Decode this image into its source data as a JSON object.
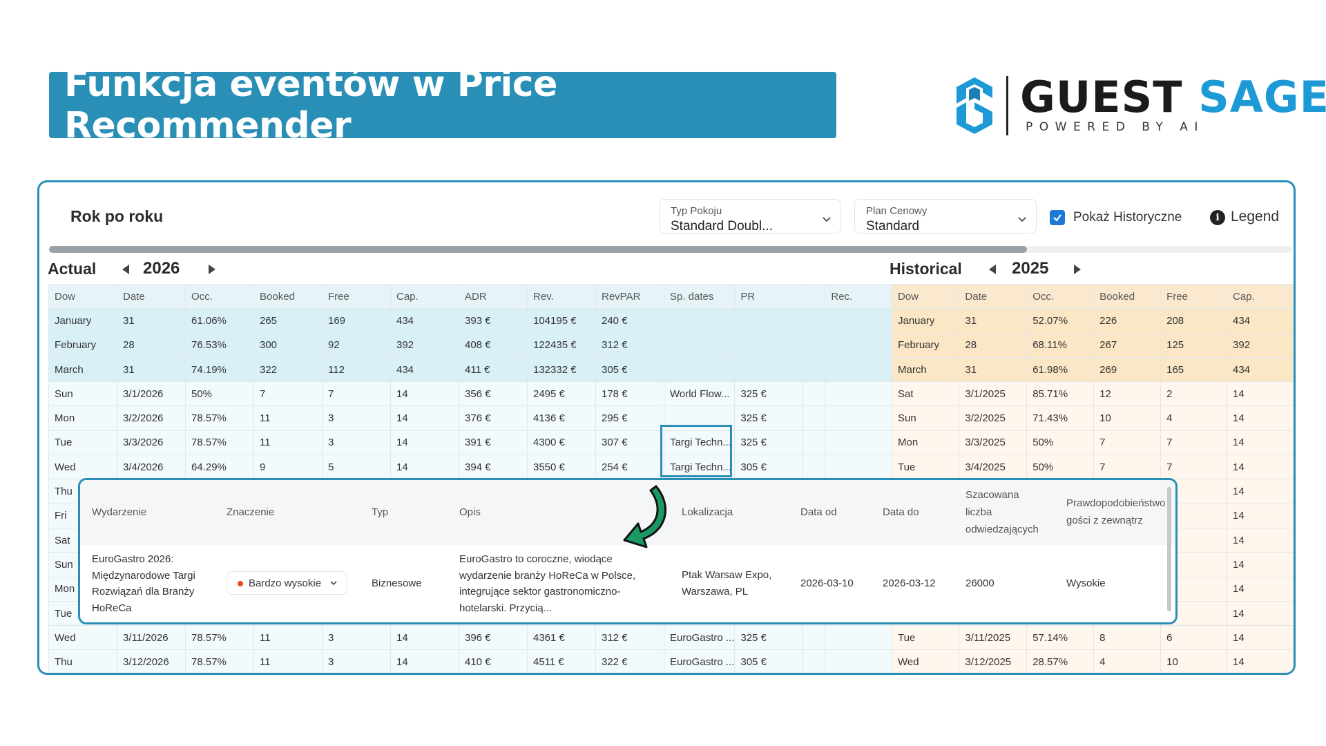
{
  "banner": {
    "title": "Funkcja eventów w Price Recommender"
  },
  "logo": {
    "name_dark": "GUEST",
    "name_accent": "SAGE",
    "tagline": "POWERED BY AI"
  },
  "app": {
    "title": "Rok po roku",
    "room_type": {
      "label": "Typ Pokoju",
      "value": "Standard Doubl..."
    },
    "rate_plan": {
      "label": "Plan Cenowy",
      "value": "Standard"
    },
    "show_historical": {
      "label": "Pokaż Historyczne",
      "checked": true
    },
    "legend": "Legend",
    "accent": "#2a8fb6"
  },
  "actual": {
    "title": "Actual",
    "year": "2026",
    "columns": [
      "Dow",
      "Date",
      "Occ.",
      "Booked",
      "Free",
      "Cap.",
      "ADR",
      "Rev.",
      "RevPAR",
      "Sp. dates",
      "PR",
      "",
      "Rec."
    ],
    "rows": [
      [
        "January",
        "31",
        "61.06%",
        "265",
        "169",
        "434",
        "393 €",
        "104195 €",
        "240 €",
        "",
        "",
        "",
        ""
      ],
      [
        "February",
        "28",
        "76.53%",
        "300",
        "92",
        "392",
        "408 €",
        "122435 €",
        "312 €",
        "",
        "",
        "",
        ""
      ],
      [
        "March",
        "31",
        "74.19%",
        "322",
        "112",
        "434",
        "411 €",
        "132332 €",
        "305 €",
        "",
        "",
        "",
        ""
      ],
      [
        "Sun",
        "3/1/2026",
        "50%",
        "7",
        "7",
        "14",
        "356 €",
        "2495 €",
        "178 €",
        "World Flow...",
        "325 €",
        "",
        ""
      ],
      [
        "Mon",
        "3/2/2026",
        "78.57%",
        "11",
        "3",
        "14",
        "376 €",
        "4136 €",
        "295 €",
        "",
        "325 €",
        "",
        ""
      ],
      [
        "Tue",
        "3/3/2026",
        "78.57%",
        "11",
        "3",
        "14",
        "391 €",
        "4300 €",
        "307 €",
        "Targi Techn...",
        "325 €",
        "",
        ""
      ],
      [
        "Wed",
        "3/4/2026",
        "64.29%",
        "9",
        "5",
        "14",
        "394 €",
        "3550 €",
        "254 €",
        "Targi Techn...",
        "305 €",
        "",
        ""
      ],
      [
        "Thu",
        "",
        "",
        "",
        "",
        "",
        "",
        "",
        "",
        "",
        "",
        "",
        ""
      ],
      [
        "Fri",
        "",
        "",
        "",
        "",
        "",
        "",
        "",
        "",
        "",
        "",
        "",
        ""
      ],
      [
        "Sat",
        "",
        "",
        "",
        "",
        "",
        "",
        "",
        "",
        "",
        "",
        "",
        ""
      ],
      [
        "Sun",
        "",
        "",
        "",
        "",
        "",
        "",
        "",
        "",
        "",
        "",
        "",
        ""
      ],
      [
        "Mon",
        "",
        "",
        "",
        "",
        "",
        "",
        "",
        "",
        "",
        "",
        "",
        ""
      ],
      [
        "Tue",
        "",
        "",
        "",
        "",
        "",
        "",
        "",
        "",
        "",
        "",
        "",
        ""
      ],
      [
        "Wed",
        "3/11/2026",
        "78.57%",
        "11",
        "3",
        "14",
        "396 €",
        "4361 €",
        "312 €",
        "EuroGastro ...",
        "325 €",
        "",
        ""
      ],
      [
        "Thu",
        "3/12/2026",
        "78.57%",
        "11",
        "3",
        "14",
        "410 €",
        "4511 €",
        "322 €",
        "EuroGastro ...",
        "305 €",
        "",
        ""
      ]
    ]
  },
  "historical": {
    "title": "Historical",
    "year": "2025",
    "columns": [
      "Dow",
      "Date",
      "Occ.",
      "Booked",
      "Free",
      "Cap."
    ],
    "rows": [
      [
        "January",
        "31",
        "52.07%",
        "226",
        "208",
        "434"
      ],
      [
        "February",
        "28",
        "68.11%",
        "267",
        "125",
        "392"
      ],
      [
        "March",
        "31",
        "61.98%",
        "269",
        "165",
        "434"
      ],
      [
        "Sat",
        "3/1/2025",
        "85.71%",
        "12",
        "2",
        "14"
      ],
      [
        "Sun",
        "3/2/2025",
        "71.43%",
        "10",
        "4",
        "14"
      ],
      [
        "Mon",
        "3/3/2025",
        "50%",
        "7",
        "7",
        "14"
      ],
      [
        "Tue",
        "3/4/2025",
        "50%",
        "7",
        "7",
        "14"
      ],
      [
        "",
        "",
        "",
        "",
        "",
        "14"
      ],
      [
        "",
        "",
        "",
        "",
        "",
        "14"
      ],
      [
        "",
        "",
        "",
        "",
        "",
        "14"
      ],
      [
        "",
        "",
        "",
        "",
        "",
        "14"
      ],
      [
        "",
        "",
        "",
        "",
        "",
        "14"
      ],
      [
        "",
        "",
        "",
        "",
        "",
        "14"
      ],
      [
        "Tue",
        "3/11/2025",
        "57.14%",
        "8",
        "6",
        "14"
      ],
      [
        "Wed",
        "3/12/2025",
        "28.57%",
        "4",
        "10",
        "14"
      ]
    ]
  },
  "event_popup": {
    "headers": {
      "event": "Wydarzenie",
      "importance": "Znaczenie",
      "type": "Typ",
      "description": "Opis",
      "location": "Lokalizacja",
      "date_from": "Data od",
      "date_to": "Data do",
      "visitors": [
        "Szacowana",
        "liczba",
        "odwiedzających"
      ],
      "outside_guests": [
        "Prawdopodobieństwo",
        "gości z zewnątrz"
      ]
    },
    "row": {
      "event": [
        "EuroGastro 2026:",
        "Międzynarodowe Targi",
        "Rozwiązań dla Branży",
        "HoReCa"
      ],
      "importance": "Bardzo wysokie",
      "importance_color": "#ee4b1f",
      "type": "Biznesowe",
      "description": [
        "EuroGastro to coroczne, wiodące",
        "wydarzenie branży HoReCa w Polsce,",
        "integrujące sektor gastronomiczno-",
        "hotelarski. Przycią..."
      ],
      "location": [
        "Ptak Warsaw Expo,",
        "Warszawa, PL"
      ],
      "date_from": "2026-03-10",
      "date_to": "2026-03-12",
      "visitors": "26000",
      "outside_guests": "Wysokie"
    }
  }
}
